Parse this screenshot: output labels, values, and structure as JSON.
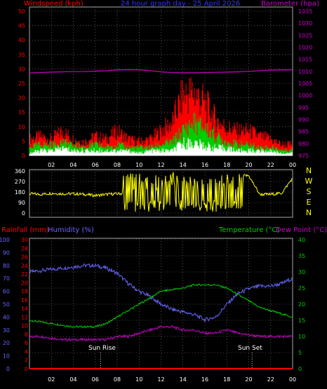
{
  "header": {
    "left_label": "Windspeed (kph)",
    "center_label": "24 hour graph day - 25 April 2026",
    "right_label": "Barometer (hpa)"
  },
  "colors": {
    "background": "#000000",
    "wind_top": "#ff0000",
    "wind_mid": "#00cc00",
    "wind_low": "#ffffff",
    "barometer": "#cc00cc",
    "wind_dir": "#ffff00",
    "humidity": "#6666ff",
    "temperature": "#00cc00",
    "dewpoint": "#cc00cc",
    "rainfall": "#ff0000",
    "grid": "#888888",
    "text_red": "#ff0000",
    "text_blue": "#3333ff",
    "text_magenta": "#cc00cc",
    "text_green": "#00cc00",
    "text_yellow": "#ffff00",
    "text_white": "#ffffff"
  },
  "x_ticks": [
    "02",
    "04",
    "06",
    "08",
    "10",
    "12",
    "14",
    "16",
    "18",
    "20",
    "22",
    "00"
  ],
  "chart_data": [
    {
      "type": "area",
      "panel": "wind",
      "left_axis": {
        "label": "Windspeed (kph)",
        "ylim": [
          0,
          50
        ],
        "ticks": [
          "0",
          "5",
          "10",
          "15",
          "20",
          "25",
          "30",
          "35",
          "40",
          "45",
          "50"
        ]
      },
      "right_axis": {
        "label": "Barometer (hpa)",
        "ylim": [
          975,
          1035
        ],
        "ticks": [
          "975",
          "980",
          "985",
          "990",
          "995",
          "1000",
          "1005",
          "1010",
          "1015",
          "1020",
          "1025",
          "1030",
          "1035"
        ]
      },
      "x": [
        0,
        1,
        2,
        3,
        4,
        5,
        6,
        7,
        8,
        9,
        10,
        11,
        12,
        13,
        14,
        15,
        16,
        17,
        18,
        19,
        20,
        21,
        22,
        23,
        24
      ],
      "series": [
        {
          "name": "gust",
          "values": [
            6,
            7,
            6,
            9,
            6,
            5,
            7,
            6,
            9,
            6,
            5,
            6,
            9,
            12,
            22,
            23,
            19,
            13,
            10,
            9,
            9,
            7,
            6,
            4,
            4
          ]
        },
        {
          "name": "average",
          "values": [
            3,
            4,
            4,
            5,
            4,
            3,
            4,
            3,
            4,
            3,
            3,
            3,
            4,
            5,
            9,
            12,
            10,
            7,
            5,
            4,
            4,
            3,
            3,
            2,
            2
          ]
        },
        {
          "name": "lull",
          "values": [
            1,
            2,
            2,
            3,
            2,
            2,
            2,
            2,
            2,
            2,
            1,
            2,
            2,
            2,
            5,
            5,
            4,
            3,
            3,
            2,
            2,
            2,
            2,
            1,
            1
          ]
        },
        {
          "name": "barometer",
          "axis": "right",
          "values": [
            1009.3,
            1009.5,
            1009.7,
            1009.8,
            1009.9,
            1009.9,
            1010.1,
            1010.2,
            1010.6,
            1010.7,
            1010.6,
            1010.3,
            1009.8,
            1009.5,
            1009.4,
            1009.4,
            1009.5,
            1009.6,
            1009.7,
            1009.8,
            1010.0,
            1010.3,
            1010.5,
            1010.6,
            1010.6
          ]
        }
      ]
    },
    {
      "type": "line",
      "panel": "wind_direction",
      "left_axis": {
        "ylim": [
          0,
          360
        ],
        "ticks": [
          "0",
          "90",
          "180",
          "270",
          "360"
        ]
      },
      "right_axis": {
        "ticks": [
          "N",
          "W",
          "S",
          "E",
          "N"
        ]
      },
      "x": [
        0,
        1,
        2,
        3,
        4,
        5,
        6,
        7,
        8,
        9,
        10,
        11,
        12,
        13,
        14,
        15,
        16,
        17,
        18,
        19,
        20,
        21,
        22,
        23,
        24
      ],
      "series": [
        {
          "name": "direction",
          "values": [
            165,
            160,
            170,
            165,
            165,
            160,
            150,
            160,
            165,
            170,
            170,
            180,
            250,
            200,
            150,
            90,
            100,
            170,
            270,
            320,
            320,
            160,
            160,
            170,
            300
          ]
        }
      ]
    },
    {
      "type": "line",
      "panel": "temperature",
      "left_axis_rain": {
        "label": "Rainfall (mm)",
        "ylim": [
          0,
          30
        ],
        "ticks": [
          "0",
          "2",
          "4",
          "6",
          "8",
          "10",
          "12",
          "14",
          "16",
          "18",
          "20",
          "22",
          "24",
          "26",
          "28",
          "30"
        ]
      },
      "left_axis_humidity": {
        "label": "Humidity (%)",
        "ylim": [
          0,
          100
        ],
        "ticks": [
          "0",
          "10",
          "20",
          "30",
          "40",
          "50",
          "60",
          "70",
          "80",
          "90",
          "100"
        ]
      },
      "right_axis": {
        "label": "Temperature (°C)",
        "label2": "Dew Point (°C)",
        "ylim": [
          0,
          40
        ],
        "ticks": [
          "0",
          "5",
          "10",
          "15",
          "20",
          "25",
          "30",
          "35",
          "40"
        ]
      },
      "x": [
        0,
        1,
        2,
        3,
        4,
        5,
        6,
        7,
        8,
        9,
        10,
        11,
        12,
        13,
        14,
        15,
        16,
        17,
        18,
        19,
        20,
        21,
        22,
        23,
        24
      ],
      "series": [
        {
          "name": "humidity",
          "axis": "humidity",
          "values": [
            75,
            76,
            77,
            78,
            79,
            80,
            80,
            78,
            74,
            66,
            60,
            56,
            50,
            46,
            44,
            42,
            38,
            40,
            50,
            58,
            62,
            64,
            64,
            66,
            70
          ]
        },
        {
          "name": "temperature",
          "axis": "right",
          "values": [
            15,
            14.5,
            14,
            13.5,
            13,
            13,
            13,
            14,
            16,
            18,
            20,
            22,
            24,
            24.5,
            25,
            26,
            26,
            26,
            25,
            23,
            21,
            19,
            18,
            17,
            16
          ]
        },
        {
          "name": "dewpoint",
          "axis": "right",
          "values": [
            10,
            10,
            9.5,
            9,
            9,
            9,
            9,
            9,
            10,
            10,
            11,
            12,
            13,
            13,
            12,
            12,
            11,
            11,
            12,
            11,
            10.5,
            10,
            10,
            10,
            10
          ]
        },
        {
          "name": "rainfall",
          "axis": "rain",
          "values": [
            0,
            0,
            0,
            0,
            0,
            0,
            0,
            0,
            0,
            0,
            0,
            0,
            0,
            0,
            0,
            0,
            0,
            0,
            0,
            0,
            0,
            0,
            0,
            0,
            0
          ]
        }
      ],
      "annotations": [
        {
          "text": "Sun Rise",
          "x": 6.5
        },
        {
          "text": "Sun Set",
          "x": 20.3
        }
      ]
    }
  ],
  "labels": {
    "rain_label": "Rainfall (mm)",
    "humidity_label": "Humidity (%)",
    "temperature_label": "Temperature (°C)",
    "dewpoint_label": "Dew Point (°C)",
    "sun_rise": "Sun Rise",
    "sun_set": "Sun Set"
  }
}
